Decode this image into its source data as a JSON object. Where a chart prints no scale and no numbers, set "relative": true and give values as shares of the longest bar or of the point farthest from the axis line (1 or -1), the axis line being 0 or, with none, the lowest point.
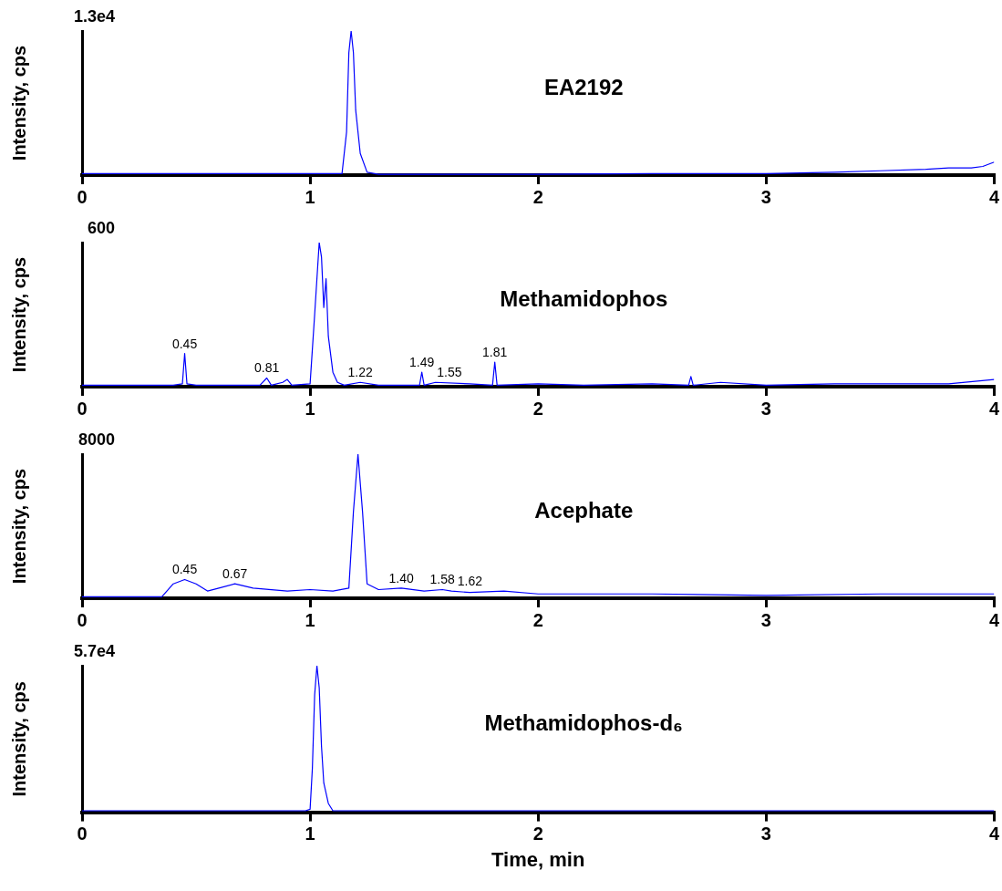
{
  "chart_data": [
    {
      "type": "line",
      "title": "EA2192",
      "ylabel": "Intensity, cps",
      "relative": true,
      "annotations": [
        "1.3e4"
      ],
      "xlim": [
        0,
        4
      ],
      "xticks": [
        0,
        1,
        2,
        3,
        4
      ],
      "grid": false,
      "legend": false,
      "marker": "none",
      "x": [
        0,
        1.0,
        1.14,
        1.16,
        1.17,
        1.18,
        1.19,
        1.2,
        1.22,
        1.25,
        1.3,
        2.0,
        2.5,
        3.0,
        3.3,
        3.5,
        3.7,
        3.8,
        3.9,
        3.95,
        4.0
      ],
      "series": [
        {
          "color": "#0000ff",
          "values": [
            0.01,
            0.01,
            0.01,
            0.3,
            0.85,
            1,
            0.85,
            0.45,
            0.15,
            0.02,
            0.005,
            0.005,
            0.01,
            0.01,
            0.02,
            0.03,
            0.04,
            0.05,
            0.05,
            0.06,
            0.09
          ]
        }
      ]
    },
    {
      "type": "line",
      "title": "Methamidophos",
      "ylabel": "Intensity, cps",
      "relative": true,
      "xlim": [
        0,
        4
      ],
      "xticks": [
        0,
        1,
        2,
        3,
        4
      ],
      "grid": false,
      "legend": false,
      "marker": "none",
      "annotations": [
        "600",
        {
          "text": "0.45",
          "x": 0.45,
          "y": 0.23
        },
        {
          "text": "0.81",
          "x": 0.81,
          "y": 0.06
        },
        {
          "text": "1.22",
          "x": 1.22,
          "y": 0.03
        },
        {
          "text": "1.49",
          "x": 1.49,
          "y": 0.1
        },
        {
          "text": "1.55",
          "x": 1.55,
          "y": 0.03
        },
        {
          "text": "1.81",
          "x": 1.81,
          "y": 0.17
        }
      ],
      "x": [
        0,
        0.4,
        0.44,
        0.45,
        0.46,
        0.5,
        0.78,
        0.81,
        0.83,
        0.88,
        0.9,
        0.92,
        1.0,
        1.02,
        1.04,
        1.05,
        1.06,
        1.07,
        1.08,
        1.1,
        1.12,
        1.15,
        1.22,
        1.3,
        1.48,
        1.49,
        1.5,
        1.55,
        1.7,
        1.8,
        1.81,
        1.82,
        2.0,
        2.2,
        2.5,
        2.66,
        2.67,
        2.68,
        2.8,
        3.0,
        3.3,
        3.5,
        3.8,
        4.0
      ],
      "series": [
        {
          "color": "#0000ff",
          "values": [
            0.01,
            0.01,
            0.02,
            0.23,
            0.02,
            0.01,
            0.01,
            0.06,
            0.01,
            0.03,
            0.05,
            0.01,
            0.02,
            0.5,
            1,
            0.9,
            0.55,
            0.75,
            0.35,
            0.1,
            0.03,
            0.01,
            0.03,
            0.01,
            0.01,
            0.1,
            0.01,
            0.03,
            0.02,
            0.01,
            0.17,
            0.01,
            0.02,
            0.01,
            0.02,
            0.01,
            0.07,
            0.01,
            0.03,
            0.01,
            0.02,
            0.02,
            0.02,
            0.05
          ]
        }
      ]
    },
    {
      "type": "line",
      "title": "Acephate",
      "ylabel": "Intensity, cps",
      "relative": true,
      "xlim": [
        0,
        4
      ],
      "xticks": [
        0,
        1,
        2,
        3,
        4
      ],
      "grid": false,
      "legend": false,
      "marker": "none",
      "annotations": [
        "8000",
        {
          "text": "0.45",
          "x": 0.45,
          "y": 0.13
        },
        {
          "text": "0.67",
          "x": 0.67,
          "y": 0.1
        },
        {
          "text": "1.40",
          "x": 1.4,
          "y": 0.07
        },
        {
          "text": "1.58",
          "x": 1.58,
          "y": 0.06
        },
        {
          "text": "1.62",
          "x": 1.62,
          "y": 0.05
        }
      ],
      "x": [
        0,
        0.35,
        0.4,
        0.45,
        0.5,
        0.55,
        0.6,
        0.67,
        0.75,
        0.9,
        1.0,
        1.1,
        1.17,
        1.19,
        1.21,
        1.23,
        1.25,
        1.3,
        1.4,
        1.5,
        1.58,
        1.62,
        1.7,
        1.85,
        2.0,
        2.5,
        3.0,
        3.5,
        4.0
      ],
      "series": [
        {
          "color": "#0000ff",
          "values": [
            0.01,
            0.01,
            0.1,
            0.13,
            0.1,
            0.05,
            0.07,
            0.1,
            0.07,
            0.05,
            0.06,
            0.05,
            0.07,
            0.6,
            1,
            0.6,
            0.1,
            0.06,
            0.07,
            0.05,
            0.06,
            0.05,
            0.04,
            0.05,
            0.03,
            0.03,
            0.02,
            0.03,
            0.03
          ]
        }
      ]
    },
    {
      "type": "line",
      "title": "Methamidophos-d₆",
      "ylabel": "Intensity, cps",
      "xlabel": "Time, min",
      "relative": true,
      "annotations": [
        "5.7e4"
      ],
      "xlim": [
        0,
        4
      ],
      "xticks": [
        0,
        1,
        2,
        3,
        4
      ],
      "grid": false,
      "legend": false,
      "marker": "none",
      "x": [
        0,
        0.98,
        1.0,
        1.01,
        1.02,
        1.03,
        1.04,
        1.05,
        1.06,
        1.08,
        1.1,
        1.12,
        4.0
      ],
      "series": [
        {
          "color": "#0000ff",
          "values": [
            0.01,
            0.01,
            0.02,
            0.3,
            0.8,
            1,
            0.85,
            0.45,
            0.2,
            0.06,
            0.01,
            0.01,
            0.01
          ]
        }
      ]
    }
  ]
}
